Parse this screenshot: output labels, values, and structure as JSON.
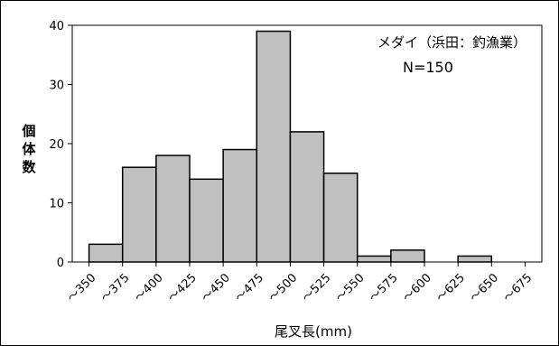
{
  "chart_data": {
    "type": "bar",
    "title": "",
    "annotations": [
      "メダイ（浜田：釣漁業）",
      "N=150"
    ],
    "xlabel": "尾叉長(mm)",
    "ylabel": "個体数",
    "x_tick_labels": [
      "～350",
      "～375",
      "～400",
      "～425",
      "～450",
      "～475",
      "～500",
      "～525",
      "～550",
      "～575",
      "～600",
      "～625",
      "～650",
      "～675"
    ],
    "categories": [
      "～375",
      "～400",
      "～425",
      "～450",
      "～475",
      "～500",
      "～525",
      "～550",
      "～575",
      "～600",
      "～625",
      "～650",
      "～675"
    ],
    "values": [
      3,
      16,
      18,
      14,
      19,
      39,
      22,
      15,
      1,
      2,
      0,
      1,
      0
    ],
    "ylim": [
      0,
      40
    ],
    "yticks": [
      0,
      10,
      20,
      30,
      40
    ],
    "bar_color": "#c0c0c0",
    "grid": false
  }
}
